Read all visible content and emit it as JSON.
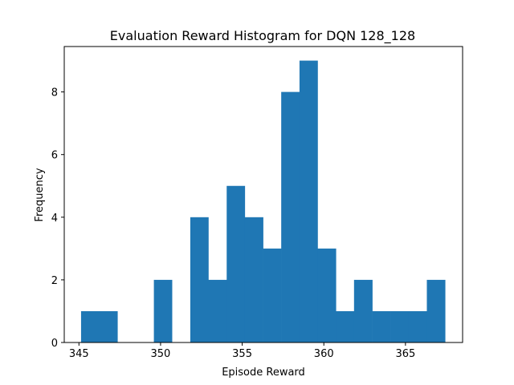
{
  "chart_data": {
    "type": "bar",
    "title": "Evaluation Reward Histogram for DQN 128_128",
    "xlabel": "Episode Reward",
    "ylabel": "Frequency",
    "xlim": [
      344.1,
      368.5
    ],
    "ylim": [
      0,
      9.45
    ],
    "grid": false,
    "color": "#1f77b4",
    "bins": [
      {
        "x0": 345.13,
        "x1": 346.24,
        "count": 1
      },
      {
        "x0": 346.24,
        "x1": 347.36,
        "count": 1
      },
      {
        "x0": 347.36,
        "x1": 348.47,
        "count": 0
      },
      {
        "x0": 348.47,
        "x1": 349.59,
        "count": 0
      },
      {
        "x0": 349.59,
        "x1": 350.7,
        "count": 2
      },
      {
        "x0": 350.7,
        "x1": 351.82,
        "count": 0
      },
      {
        "x0": 351.82,
        "x1": 352.93,
        "count": 4
      },
      {
        "x0": 352.93,
        "x1": 354.05,
        "count": 2
      },
      {
        "x0": 354.05,
        "x1": 355.16,
        "count": 5
      },
      {
        "x0": 355.16,
        "x1": 356.28,
        "count": 4
      },
      {
        "x0": 356.28,
        "x1": 357.39,
        "count": 3
      },
      {
        "x0": 357.39,
        "x1": 358.51,
        "count": 8
      },
      {
        "x0": 358.51,
        "x1": 359.62,
        "count": 9
      },
      {
        "x0": 359.62,
        "x1": 360.74,
        "count": 3
      },
      {
        "x0": 360.74,
        "x1": 361.85,
        "count": 1
      },
      {
        "x0": 361.85,
        "x1": 362.97,
        "count": 2
      },
      {
        "x0": 362.97,
        "x1": 364.08,
        "count": 1
      },
      {
        "x0": 364.08,
        "x1": 365.2,
        "count": 1
      },
      {
        "x0": 365.2,
        "x1": 366.31,
        "count": 1
      },
      {
        "x0": 366.31,
        "x1": 367.43,
        "count": 2
      }
    ],
    "xticks": [
      345,
      350,
      355,
      360,
      365
    ],
    "xtick_labels": [
      "345",
      "350",
      "355",
      "360",
      "365"
    ],
    "yticks": [
      0,
      2,
      4,
      6,
      8
    ],
    "ytick_labels": [
      "0",
      "2",
      "4",
      "6",
      "8"
    ]
  }
}
